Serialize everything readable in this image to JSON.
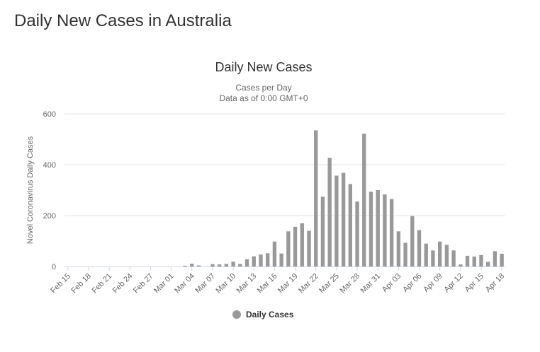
{
  "page": {
    "heading": "Daily New Cases in Australia"
  },
  "chart_data": {
    "type": "bar",
    "title": "Daily New Cases",
    "subtitle_line1": "Cases per Day",
    "subtitle_line2": "Data as of 0:00 GMT+0",
    "xlabel": "",
    "ylabel": "Novel Coronavirus Daily Cases",
    "ylim": [
      0,
      600
    ],
    "yticks": [
      0,
      200,
      400,
      600
    ],
    "grid": true,
    "legend_position": "bottom-center",
    "bar_color": "#999999",
    "categories": [
      "Feb 15",
      "Feb 16",
      "Feb 17",
      "Feb 18",
      "Feb 19",
      "Feb 20",
      "Feb 21",
      "Feb 22",
      "Feb 23",
      "Feb 24",
      "Feb 25",
      "Feb 26",
      "Feb 27",
      "Feb 28",
      "Feb 29",
      "Mar 01",
      "Mar 02",
      "Mar 03",
      "Mar 04",
      "Mar 05",
      "Mar 06",
      "Mar 07",
      "Mar 08",
      "Mar 09",
      "Mar 10",
      "Mar 11",
      "Mar 12",
      "Mar 13",
      "Mar 14",
      "Mar 15",
      "Mar 16",
      "Mar 17",
      "Mar 18",
      "Mar 19",
      "Mar 20",
      "Mar 21",
      "Mar 22",
      "Mar 23",
      "Mar 24",
      "Mar 25",
      "Mar 26",
      "Mar 27",
      "Mar 28",
      "Mar 29",
      "Mar 30",
      "Mar 31",
      "Apr 01",
      "Apr 02",
      "Apr 03",
      "Apr 04",
      "Apr 05",
      "Apr 06",
      "Apr 07",
      "Apr 08",
      "Apr 09",
      "Apr 10",
      "Apr 11",
      "Apr 12",
      "Apr 13",
      "Apr 14",
      "Apr 15",
      "Apr 16",
      "Apr 17",
      "Apr 18"
    ],
    "tick_labels": [
      "Feb 15",
      "Feb 18",
      "Feb 21",
      "Feb 24",
      "Feb 27",
      "Mar 01",
      "Mar 04",
      "Mar 07",
      "Mar 10",
      "Mar 13",
      "Mar 16",
      "Mar 19",
      "Mar 22",
      "Mar 25",
      "Mar 28",
      "Mar 31",
      "Apr 03",
      "Apr 06",
      "Apr 09",
      "Apr 12",
      "Apr 15",
      "Apr 18"
    ],
    "series": [
      {
        "name": "Daily Cases",
        "values": [
          0,
          0,
          0,
          0,
          0,
          0,
          0,
          0,
          0,
          0,
          0,
          0,
          0,
          0,
          0,
          0,
          0,
          3,
          11,
          4,
          0,
          9,
          8,
          10,
          19,
          10,
          28,
          40,
          47,
          52,
          98,
          51,
          138,
          156,
          170,
          140,
          535,
          274,
          427,
          357,
          368,
          324,
          255,
          522,
          294,
          300,
          283,
          265,
          138,
          93,
          198,
          143,
          90,
          63,
          98,
          85,
          63,
          8,
          42,
          39,
          45,
          18,
          60,
          50
        ]
      }
    ]
  }
}
